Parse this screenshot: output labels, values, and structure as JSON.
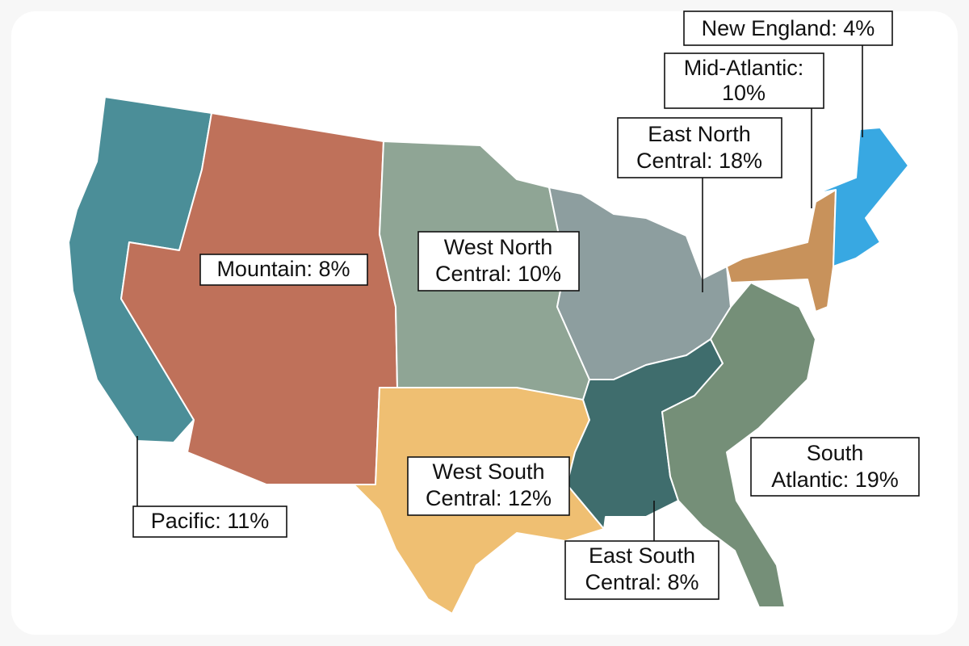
{
  "regions": [
    {
      "label_lines": [
        "Pacific: 11%"
      ],
      "color": "#4b8e98"
    },
    {
      "label_lines": [
        "Mountain: 8%"
      ],
      "color": "#bf715a"
    },
    {
      "label_lines": [
        "West North",
        "Central: 10%"
      ],
      "color": "#8fa595"
    },
    {
      "label_lines": [
        "West South",
        "Central: 12%"
      ],
      "color": "#efbf72"
    },
    {
      "label_lines": [
        "East North",
        "Central: 18%"
      ],
      "color": "#8d9e9f"
    },
    {
      "label_lines": [
        "East South",
        "Central: 8%"
      ],
      "color": "#3f6d6d"
    },
    {
      "label_lines": [
        "South",
        "Atlantic: 19%"
      ],
      "color": "#758f78"
    },
    {
      "label_lines": [
        "Mid-Atlantic:",
        "10%"
      ],
      "color": "#c8925b"
    },
    {
      "label_lines": [
        "New England: 4%"
      ],
      "color": "#38a8e2"
    }
  ]
}
